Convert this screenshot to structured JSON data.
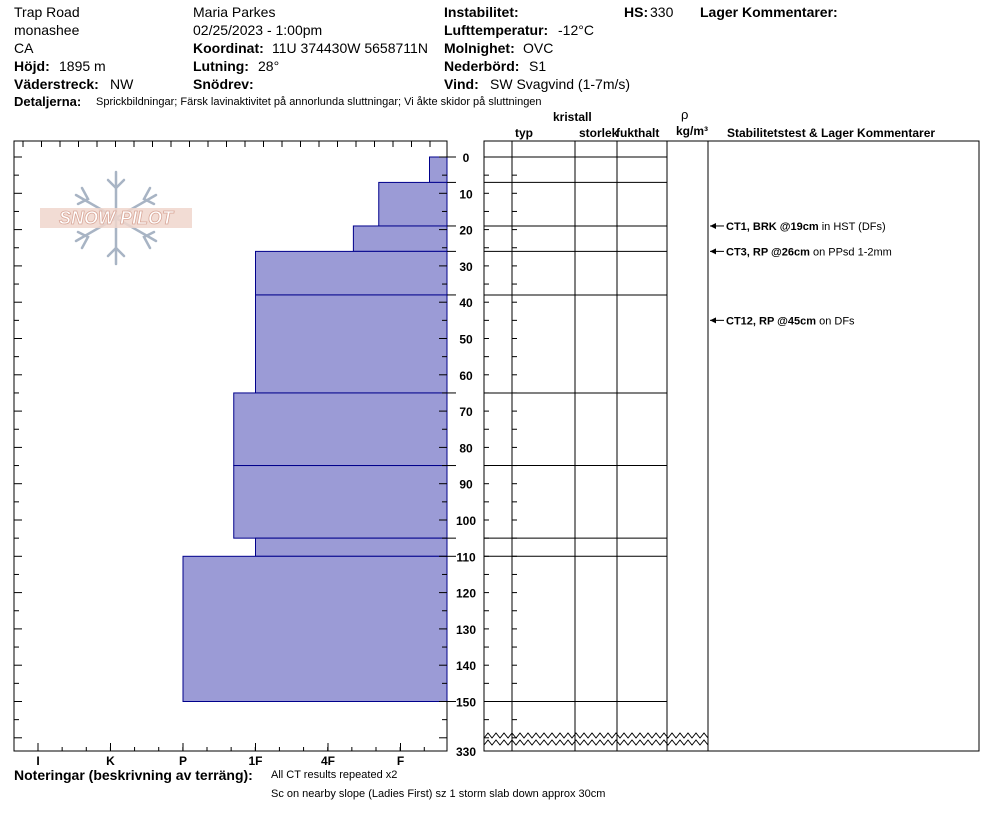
{
  "header": {
    "location": "Trap Road",
    "subregion": "monashee",
    "country": "CA",
    "elevation_label": "Höjd:",
    "elevation_value": "1895 m",
    "aspect_label": "Väderstreck:",
    "aspect_value": "NW",
    "observer": "Maria Parkes",
    "datetime": "02/25/2023 - 1:00pm",
    "coord_label": "Koordinat:",
    "coord_value": "11U 374430W 5658711N",
    "slope_label": "Lutning:",
    "slope_value": "28°",
    "drift_label": "Snödrev:",
    "drift_value": "",
    "instability_label": "Instabilitet:",
    "instability_value": "",
    "airtemp_label": "Lufttemperatur:",
    "airtemp_value": "-12°C",
    "sky_label": "Molnighet:",
    "sky_value": "OVC",
    "precip_label": "Nederbörd:",
    "precip_value": "S1",
    "wind_label": "Vind:",
    "wind_value": "SW  Svagvind (1-7m/s)",
    "hs_label": "HS:",
    "hs_value": "330",
    "layer_comments_label": "Lager Kommentarer:",
    "details_label": "Detaljerna:",
    "details_value": "Sprickbildningar;  Färsk lavinaktivitet på annorlunda sluttningar;  Vi åkte skidor på sluttningen"
  },
  "logo_text": "SNOW PILOT",
  "columns": {
    "type": "typ",
    "crystal": "kristall",
    "size": "storlek",
    "moisture": "fukthalt",
    "rho": "ρ",
    "density_unit": "kg/m³",
    "stability": "Stabilitetstest & Lager Kommentarer"
  },
  "footer": {
    "notes_label": "Noteringar (beskrivning av terräng):",
    "notes_line1": "All CT results repeated x2",
    "notes_line2": "Sc on nearby slope (Ladies First) sz 1 storm slab down approx 30cm"
  },
  "chart_data": {
    "type": "bar",
    "orientation": "horizontal",
    "description_of_axes": "depth from surface (cm) vs hand hardness",
    "x_ticks": [
      "I",
      "K",
      "P",
      "1F",
      "4F",
      "F"
    ],
    "x_scale_note": "hardness decreases left to right (F = fist at right)",
    "y_ticks": [
      0,
      10,
      20,
      30,
      40,
      50,
      60,
      70,
      80,
      90,
      100,
      110,
      120,
      130,
      140,
      150
    ],
    "y_bottom_label": "330",
    "ylim": [
      0,
      150
    ],
    "hardness_scale": {
      "I": 0,
      "K": 1,
      "P": 2,
      "1F": 3,
      "4F": 4,
      "F": 5,
      "base": 5.67
    },
    "layers": [
      {
        "top": 0,
        "bottom": 7,
        "hardness": 5.4
      },
      {
        "top": 7,
        "bottom": 19,
        "hardness": 4.7
      },
      {
        "top": 19,
        "bottom": 26,
        "hardness": 4.35
      },
      {
        "top": 26,
        "bottom": 38,
        "hardness": 3.0
      },
      {
        "top": 38,
        "bottom": 65,
        "hardness": 3.0
      },
      {
        "top": 65,
        "bottom": 85,
        "hardness": 2.7
      },
      {
        "top": 85,
        "bottom": 105,
        "hardness": 2.7
      },
      {
        "top": 105,
        "bottom": 110,
        "hardness": 3.0
      },
      {
        "top": 110,
        "bottom": 150,
        "hardness": 2.0
      }
    ],
    "stability_tests": [
      {
        "depth": 19,
        "result": "CT1, BRK @19cm",
        "comment": "in HST (DFs)"
      },
      {
        "depth": 26,
        "result": "CT3, RP @26cm",
        "comment": "on PPsd 1-2mm"
      },
      {
        "depth": 45,
        "result": "CT12, RP @45cm",
        "comment": "on DFs"
      }
    ],
    "bar_color": "#9b9bd6",
    "bar_edge_color": "#00008b"
  }
}
